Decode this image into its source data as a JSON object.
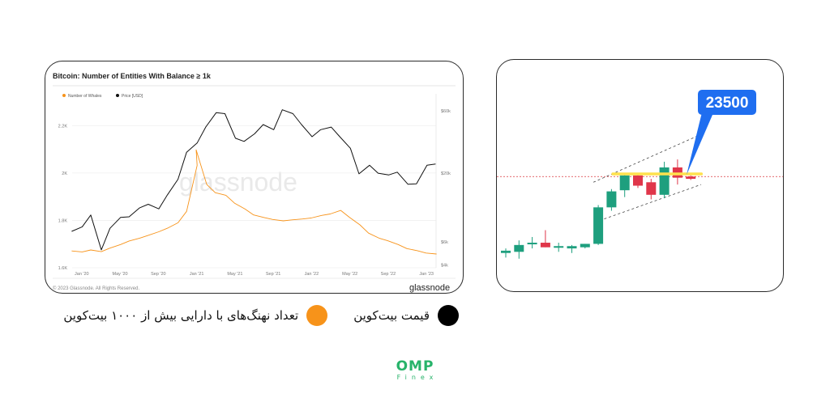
{
  "left_chart": {
    "chart_data": {
      "type": "line",
      "title": "Bitcoin: Number of Entities With Balance ≥ 1k",
      "watermark": "glassnode",
      "legend": [
        "Number of Whales",
        "Price [USD]"
      ],
      "legend_placement": "top-left",
      "x_ticks": [
        "Jan '20",
        "May '20",
        "Sep '20",
        "Jan '21",
        "May '21",
        "Sep '21",
        "Jan '22",
        "May '22",
        "Sep '22",
        "Jan '23"
      ],
      "left_ticks": [
        "2.2K",
        "2K",
        "1.8K",
        "1.6K"
      ],
      "right_ticks": [
        "$60k",
        "$20k",
        "$6k",
        "$4k"
      ],
      "xlim": [
        "2019-12",
        "2023-02"
      ],
      "grid": "horizontal",
      "series": [
        {
          "name": "Number of Whales",
          "color": "#f7931a",
          "axis": "left",
          "points": [
            [
              "2019-12",
              1671
            ],
            [
              "2020-01",
              1667
            ],
            [
              "2020-02",
              1675
            ],
            [
              "2020-03",
              1668
            ],
            [
              "2020-04",
              1683
            ],
            [
              "2020-05",
              1698
            ],
            [
              "2020-06",
              1713
            ],
            [
              "2020-07",
              1725
            ],
            [
              "2020-08",
              1737
            ],
            [
              "2020-09",
              1752
            ],
            [
              "2020-10",
              1767
            ],
            [
              "2020-11",
              1790
            ],
            [
              "2020-12",
              1838
            ],
            [
              "2021-01",
              2032
            ],
            [
              "2021-01",
              2098
            ],
            [
              "2021-02",
              1952
            ],
            [
              "2021-03",
              1917
            ],
            [
              "2021-04",
              1906
            ],
            [
              "2021-05",
              1873
            ],
            [
              "2021-06",
              1848
            ],
            [
              "2021-07",
              1823
            ],
            [
              "2021-08",
              1812
            ],
            [
              "2021-09",
              1804
            ],
            [
              "2021-10",
              1798
            ],
            [
              "2021-11",
              1802
            ],
            [
              "2021-12",
              1806
            ],
            [
              "2022-01",
              1810
            ],
            [
              "2022-02",
              1821
            ],
            [
              "2022-03",
              1827
            ],
            [
              "2022-04",
              1842
            ],
            [
              "2022-05",
              1813
            ],
            [
              "2022-06",
              1781
            ],
            [
              "2022-07",
              1746
            ],
            [
              "2022-08",
              1725
            ],
            [
              "2022-09",
              1714
            ],
            [
              "2022-10",
              1698
            ],
            [
              "2022-11",
              1681
            ],
            [
              "2022-12",
              1672
            ],
            [
              "2023-01",
              1662
            ],
            [
              "2023-02",
              1658
            ]
          ]
        },
        {
          "name": "Price [USD]",
          "color": "#111111",
          "axis": "right",
          "points": [
            [
              "2019-12",
              7200
            ],
            [
              "2020-01",
              7800
            ],
            [
              "2020-02",
              9600
            ],
            [
              "2020-03",
              5200
            ],
            [
              "2020-04",
              7600
            ],
            [
              "2020-05",
              9200
            ],
            [
              "2020-06",
              9300
            ],
            [
              "2020-07",
              10900
            ],
            [
              "2020-08",
              11600
            ],
            [
              "2020-09",
              10700
            ],
            [
              "2020-10",
              13700
            ],
            [
              "2020-11",
              18000
            ],
            [
              "2020-12",
              28900
            ],
            [
              "2021-01",
              34000
            ],
            [
              "2021-02",
              45000
            ],
            [
              "2021-03",
              58000
            ],
            [
              "2021-04",
              57000
            ],
            [
              "2021-05",
              37000
            ],
            [
              "2021-06",
              35000
            ],
            [
              "2021-07",
              40000
            ],
            [
              "2021-08",
              47000
            ],
            [
              "2021-09",
              43000
            ],
            [
              "2021-10",
              61000
            ],
            [
              "2021-11",
              57000
            ],
            [
              "2021-12",
              47000
            ],
            [
              "2022-01",
              38000
            ],
            [
              "2022-02",
              43000
            ],
            [
              "2022-03",
              45000
            ],
            [
              "2022-04",
              38000
            ],
            [
              "2022-05",
              31000
            ],
            [
              "2022-06",
              19800
            ],
            [
              "2022-07",
              23000
            ],
            [
              "2022-08",
              20000
            ],
            [
              "2022-09",
              19400
            ],
            [
              "2022-10",
              20400
            ],
            [
              "2022-11",
              16500
            ],
            [
              "2022-12",
              16600
            ],
            [
              "2023-01",
              23000
            ],
            [
              "2023-02",
              23500
            ]
          ]
        }
      ]
    },
    "footer_text": "© 2023 Glassnode. All Rights Reserved.",
    "footer_brand": "glassnode"
  },
  "right_chart": {
    "chart_data": {
      "type": "candlestick",
      "callout_label": "23500",
      "reference_level": 23500,
      "up_color": "#1e9f7e",
      "down_color": "#e0364a",
      "highlight_color": "#ffe14d",
      "callout_color": "#1f6ef0",
      "channel": "dashed-upward",
      "candles": [
        {
          "o": 16800,
          "h": 17200,
          "l": 16400,
          "c": 17000
        },
        {
          "o": 16900,
          "h": 17900,
          "l": 16300,
          "c": 17500
        },
        {
          "o": 17600,
          "h": 18200,
          "l": 17200,
          "c": 17700
        },
        {
          "o": 17700,
          "h": 18800,
          "l": 17300,
          "c": 17300
        },
        {
          "o": 17300,
          "h": 17700,
          "l": 16900,
          "c": 17400
        },
        {
          "o": 17200,
          "h": 17500,
          "l": 16800,
          "c": 17400
        },
        {
          "o": 17300,
          "h": 17600,
          "l": 17200,
          "c": 17600
        },
        {
          "o": 17600,
          "h": 21000,
          "l": 17500,
          "c": 20800
        },
        {
          "o": 20800,
          "h": 22400,
          "l": 20500,
          "c": 22200
        },
        {
          "o": 22300,
          "h": 23800,
          "l": 21700,
          "c": 23600
        },
        {
          "o": 23600,
          "h": 23800,
          "l": 22500,
          "c": 22700
        },
        {
          "o": 23000,
          "h": 23300,
          "l": 21500,
          "c": 21900
        },
        {
          "o": 21900,
          "h": 24800,
          "l": 21600,
          "c": 24300
        },
        {
          "o": 24300,
          "h": 25000,
          "l": 22800,
          "c": 23400
        },
        {
          "o": 23500,
          "h": 23600,
          "l": 23200,
          "c": 23300
        }
      ]
    }
  },
  "legend": {
    "price": {
      "label": "قیمت بیت‌کوین",
      "color": "#000000"
    },
    "whales": {
      "label": "تعداد نهنگ‌های با دارایی بیش از ۱۰۰۰ بیت‌کوین",
      "color": "#f7931a"
    }
  },
  "brand": {
    "main": "OMP",
    "sub": "Finex",
    "color": "#27b36a"
  }
}
